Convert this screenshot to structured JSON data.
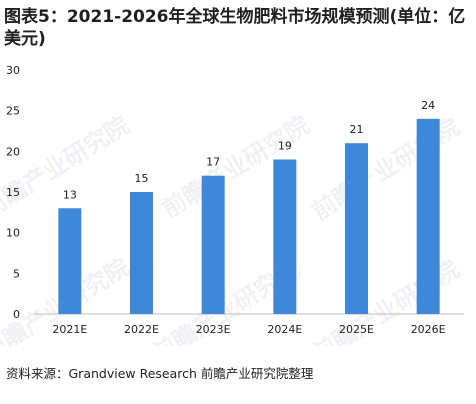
{
  "title": "图表5：2021-2026年全球生物肥料市场规模预测(单位：亿美元)",
  "source": "资料来源：Grandview Research 前瞻产业研究院整理",
  "watermark": "前瞻产业研究院",
  "colors": {
    "bar": "#3f87d9",
    "axis": "#bfbfbf",
    "text": "#222222"
  },
  "chart_data": {
    "type": "bar",
    "categories": [
      "2021E",
      "2022E",
      "2023E",
      "2024E",
      "2025E",
      "2026E"
    ],
    "values": [
      13,
      15,
      17,
      19,
      21,
      24
    ],
    "ylim": [
      0,
      30
    ],
    "yticks": [
      0,
      5,
      10,
      15,
      20,
      25,
      30
    ],
    "data_labels": true,
    "grid": false,
    "legend": "none"
  }
}
